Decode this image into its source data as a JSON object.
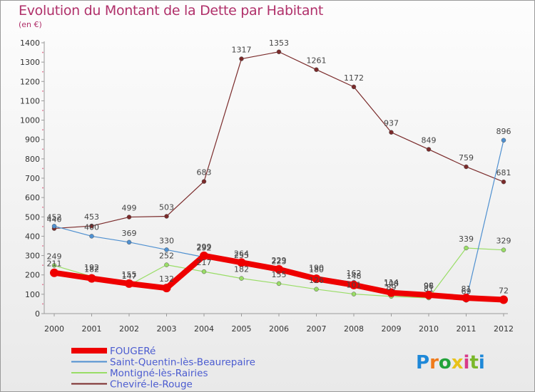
{
  "header": {
    "title": "Evolution du Montant de la Dette par Habitant",
    "subtitle": "(en €)"
  },
  "brand": {
    "letters": [
      "P",
      "r",
      "o",
      "x",
      "i",
      "t",
      "i"
    ],
    "colors": [
      "#1e88d8",
      "#f07a1a",
      "#22a33a",
      "#e8c21a",
      "#d83a8a",
      "#7ab82a",
      "#1e88d8"
    ]
  },
  "chart_data": {
    "type": "line",
    "title": "Evolution du Montant de la Dette par Habitant",
    "subtitle": "(en €)",
    "x": [
      "2000",
      "2001",
      "2002",
      "2003",
      "2004",
      "2005",
      "2006",
      "2007",
      "2008",
      "2009",
      "2010",
      "2011",
      "2012"
    ],
    "ylim": [
      0,
      1400
    ],
    "yticks": [
      0,
      100,
      200,
      300,
      400,
      500,
      600,
      700,
      800,
      900,
      1000,
      1100,
      1200,
      1300,
      1400
    ],
    "grid": false,
    "legend_position": "bottom-left",
    "series": [
      {
        "name": "FOUGERé",
        "color": "#ee0000",
        "values": [
          211,
          182,
          155,
          132,
          299,
          264,
          229,
          180,
          148,
          108,
          96,
          81,
          72
        ]
      },
      {
        "name": "Saint-Quentin-lès-Beaurepaire",
        "color": "#4f90d0",
        "values": [
          452,
          400,
          369,
          330,
          292,
          255,
          223,
          190,
          162,
          114,
          98,
          69,
          896
        ]
      },
      {
        "name": "Montigné-lès-Rairies",
        "color": "#99dd66",
        "values": [
          249,
          192,
          147,
          252,
          217,
          182,
          155,
          126,
          101,
          89,
          81,
          339,
          329
        ]
      },
      {
        "name": "Cheviré-le-Rouge",
        "color": "#7a2a2a",
        "values": [
          440,
          453,
          499,
          503,
          683,
          1317,
          1353,
          1261,
          1172,
          937,
          849,
          759,
          681
        ]
      }
    ]
  }
}
